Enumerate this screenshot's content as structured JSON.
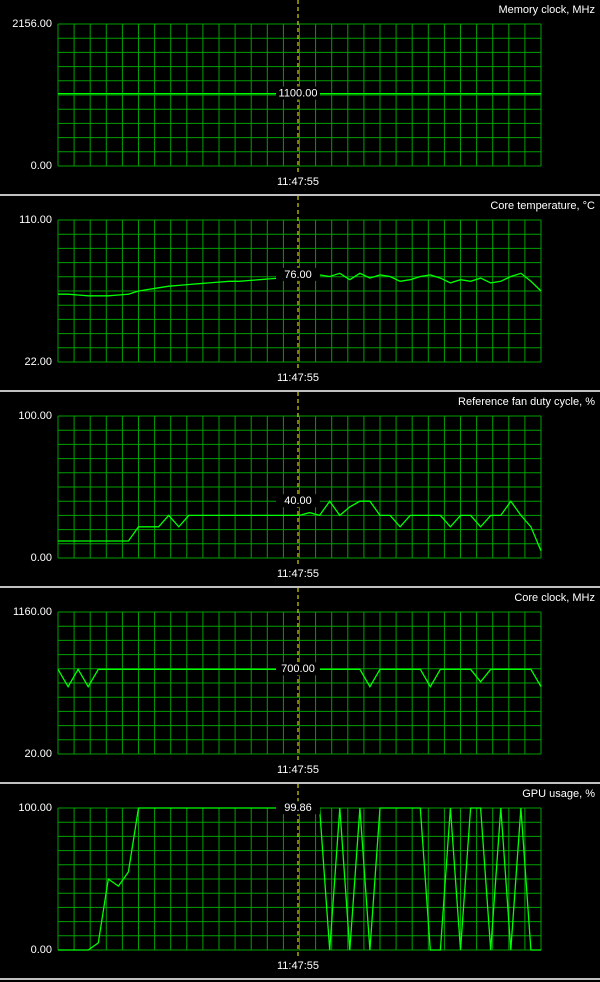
{
  "chart_data": [
    {
      "type": "line",
      "title": "Memory clock, MHz",
      "ylim": [
        0,
        2156
      ],
      "yticks": [
        {
          "value": 0,
          "label": "0.00"
        },
        {
          "value": 2156,
          "label": "2156.00"
        }
      ],
      "grid": true,
      "cursor_time": "11:47:55",
      "current_value": {
        "value": 1100,
        "label": "1100.00"
      },
      "series": [
        {
          "color": "#00ff00",
          "values": [
            1100,
            1100,
            1100,
            1100,
            1100,
            1100,
            1100,
            1100,
            1100,
            1100
          ]
        }
      ]
    },
    {
      "type": "line",
      "title": "Core temperature, °C",
      "ylim": [
        22,
        110
      ],
      "yticks": [
        {
          "value": 22,
          "label": "22.00"
        },
        {
          "value": 110,
          "label": "110.00"
        }
      ],
      "grid": true,
      "cursor_time": "11:47:55",
      "current_value": {
        "value": 76,
        "label": "76.00"
      },
      "series": [
        {
          "color": "#00ff00",
          "values": [
            64,
            64,
            63.5,
            63,
            63,
            63,
            63.5,
            64,
            66,
            67,
            68,
            69,
            69.5,
            70,
            70.5,
            71,
            71.5,
            72,
            72,
            72.5,
            73,
            73.5,
            74,
            74,
            74,
            75,
            76,
            75,
            77,
            73,
            77,
            74,
            76,
            75,
            72,
            73,
            75,
            76,
            74,
            71,
            73,
            72,
            74,
            71,
            72,
            75,
            77,
            72,
            66
          ]
        }
      ]
    },
    {
      "type": "line",
      "title": "Reference fan duty cycle, %",
      "ylim": [
        0,
        100
      ],
      "yticks": [
        {
          "value": 0,
          "label": "0.00"
        },
        {
          "value": 100,
          "label": "100.00"
        }
      ],
      "grid": true,
      "cursor_time": "11:47:55",
      "current_value": {
        "value": 40,
        "label": "40.00"
      },
      "series": [
        {
          "color": "#00ff00",
          "values": [
            12,
            12,
            12,
            12,
            12,
            12,
            12,
            12,
            22,
            22,
            22,
            30,
            22,
            30,
            30,
            30,
            30,
            30,
            30,
            30,
            30,
            30,
            30,
            30,
            30,
            32,
            30,
            40,
            30,
            36,
            40,
            40,
            30,
            30,
            22,
            30,
            30,
            30,
            30,
            22,
            30,
            30,
            22,
            30,
            30,
            40,
            30,
            22,
            5
          ]
        }
      ]
    },
    {
      "type": "line",
      "title": "Core clock, MHz",
      "ylim": [
        20,
        1160
      ],
      "yticks": [
        {
          "value": 20,
          "label": "20.00"
        },
        {
          "value": 1160,
          "label": "1160.00"
        }
      ],
      "grid": true,
      "cursor_time": "11:47:55",
      "current_value": {
        "value": 700,
        "label": "700.00"
      },
      "series": [
        {
          "color": "#00ff00",
          "values": [
            700,
            560,
            700,
            560,
            700,
            700,
            700,
            700,
            700,
            700,
            700,
            700,
            700,
            700,
            700,
            700,
            700,
            700,
            700,
            700,
            700,
            700,
            700,
            700,
            700,
            700,
            700,
            700,
            700,
            700,
            700,
            560,
            700,
            700,
            700,
            700,
            700,
            560,
            700,
            700,
            700,
            700,
            600,
            700,
            700,
            700,
            700,
            700,
            560
          ]
        }
      ]
    },
    {
      "type": "line",
      "title": "GPU usage, %",
      "ylim": [
        0,
        100
      ],
      "yticks": [
        {
          "value": 0,
          "label": "0.00"
        },
        {
          "value": 100,
          "label": "100.00"
        }
      ],
      "grid": true,
      "cursor_time": "11:47:55",
      "current_value": {
        "value": 99.86,
        "label": "99.86"
      },
      "series": [
        {
          "color": "#00ff00",
          "values": [
            0,
            0,
            0,
            0,
            5,
            50,
            45,
            55,
            100,
            100,
            100,
            100,
            100,
            100,
            100,
            100,
            100,
            100,
            100,
            100,
            100,
            100,
            100,
            100,
            100,
            100,
            100,
            0,
            100,
            0,
            100,
            0,
            100,
            100,
            100,
            100,
            100,
            0,
            0,
            100,
            0,
            100,
            100,
            0,
            100,
            0,
            100,
            0,
            0
          ]
        }
      ]
    }
  ]
}
